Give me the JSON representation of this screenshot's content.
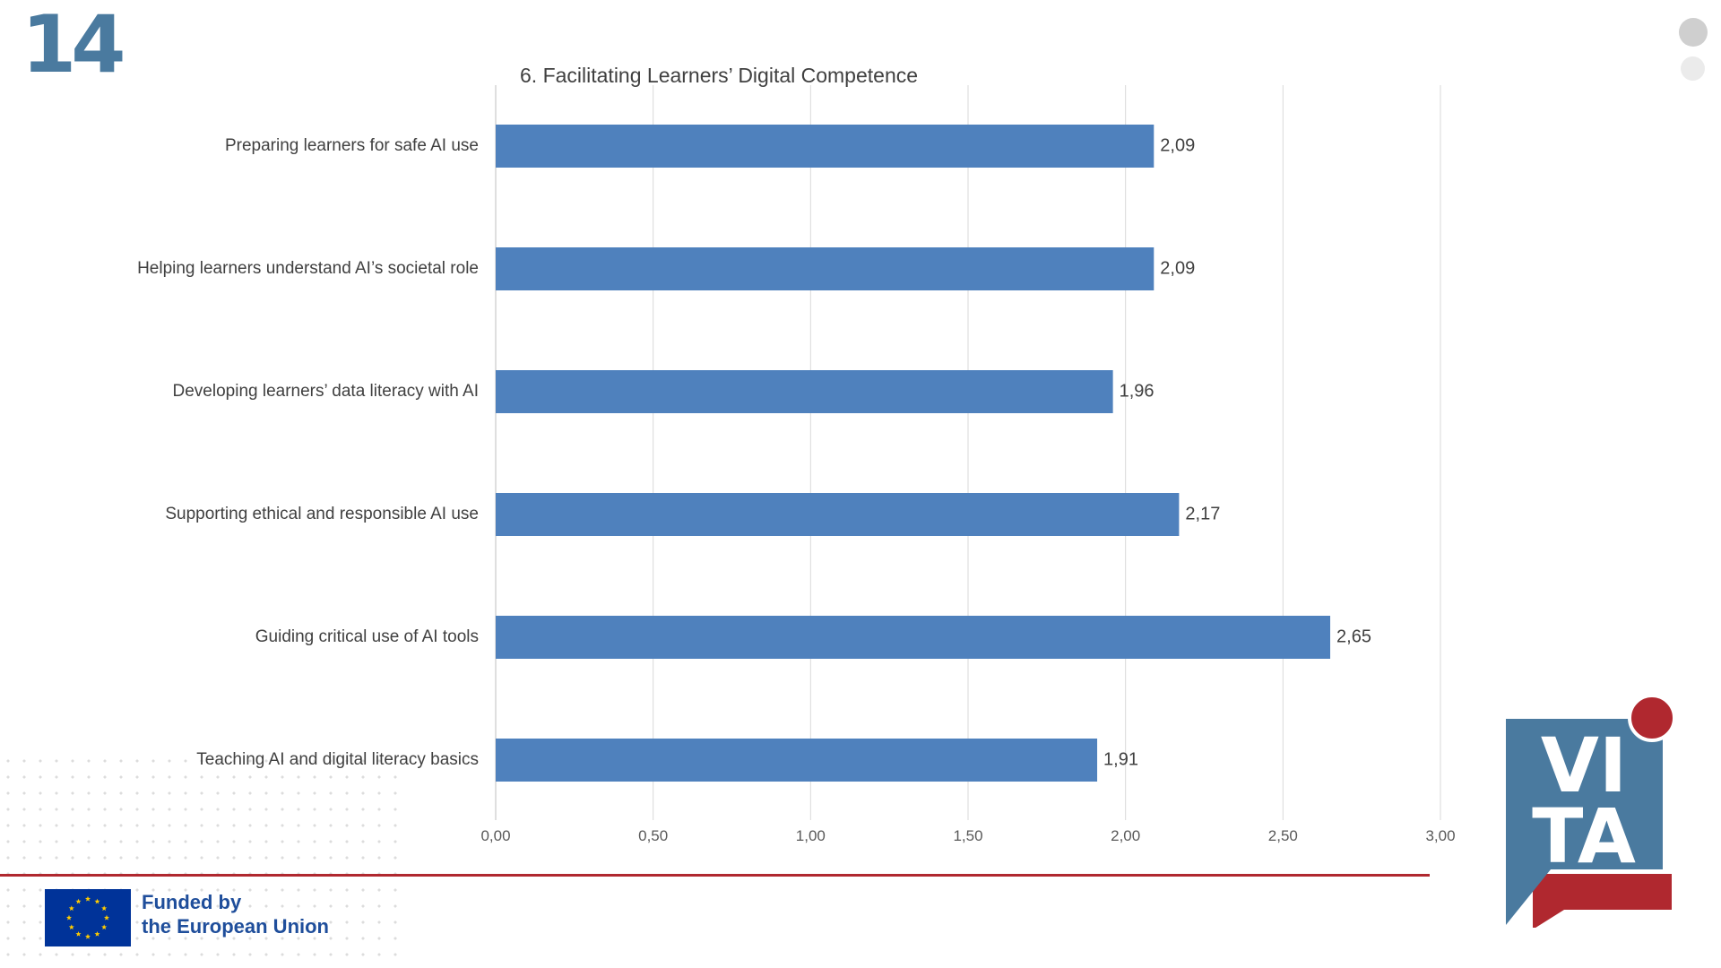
{
  "slide": {
    "page_number": "14"
  },
  "footer": {
    "funding_line_1": "Funded by",
    "funding_line_2": "the European Union"
  },
  "logo": {
    "top_letters": "VI",
    "bottom_letters": "TA"
  },
  "colors": {
    "bar": "#4f81bd",
    "page_number": "#4a7a9f",
    "brand_blue": "#4a7a9f",
    "brand_red": "#b0282f",
    "eu_blue": "#003399",
    "eu_star": "#ffcc00"
  },
  "icons": {
    "eu_flag": "eu-flag-icon",
    "vita_logo": "vita-logo-icon"
  },
  "chart_data": {
    "type": "bar",
    "orientation": "horizontal",
    "title": "6. Facilitating Learners’ Digital Competence",
    "categories": [
      "Preparing learners for safe AI use",
      "Helping  learners understand  AI’s societal role",
      "Developing  learners’ data literacy with AI",
      "Supporting ethical and responsible AI use",
      "Guiding critical use of AI tools",
      "Teaching AI and digital literacy basics"
    ],
    "values": [
      2.09,
      2.09,
      1.96,
      2.17,
      2.65,
      1.91
    ],
    "value_labels": [
      "2,09",
      "2,09",
      "1,96",
      "2,17",
      "2,65",
      "1,91"
    ],
    "xlim": [
      0,
      3
    ],
    "ticks": [
      0,
      0.5,
      1,
      1.5,
      2,
      2.5,
      3
    ],
    "tick_labels": [
      "0,00",
      "0,50",
      "1,00",
      "1,50",
      "2,00",
      "2,50",
      "3,00"
    ],
    "grid": true,
    "legend": "none"
  }
}
